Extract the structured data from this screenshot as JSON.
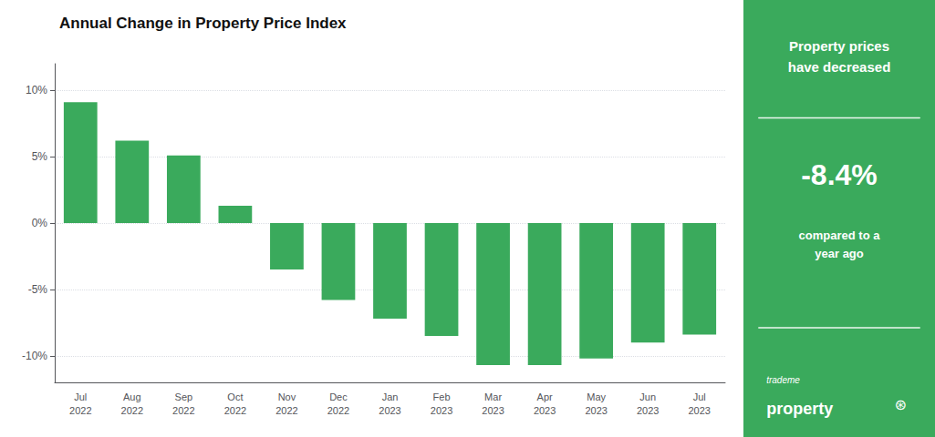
{
  "chart_data": {
    "type": "bar",
    "title": "Annual Change in Property Price Index",
    "categories": [
      "Jul\n2022",
      "Aug\n2022",
      "Sep\n2022",
      "Oct\n2022",
      "Nov\n2022",
      "Dec\n2022",
      "Jan\n2023",
      "Feb\n2023",
      "Mar\n2023",
      "Apr\n2023",
      "May\n2023",
      "Jun\n2023",
      "Jul\n2023"
    ],
    "values": [
      9.1,
      6.2,
      5.1,
      1.3,
      -3.5,
      -5.8,
      -7.2,
      -8.5,
      -10.7,
      -10.7,
      -10.2,
      -9.0,
      -8.4
    ],
    "color": "#3aaa5c",
    "ylim": [
      -12,
      12
    ],
    "yticks": [
      {
        "value": -10,
        "label": "-10%"
      },
      {
        "value": -5,
        "label": "-5%"
      },
      {
        "value": 0,
        "label": "0%"
      },
      {
        "value": 5,
        "label": "5%"
      },
      {
        "value": 10,
        "label": "10%"
      }
    ],
    "grid": true,
    "annotations": [
      "Property prices\nhave decreased",
      "-8.4%",
      "compared to a\nyear ago",
      "trademe",
      "property",
      "⊛"
    ]
  }
}
